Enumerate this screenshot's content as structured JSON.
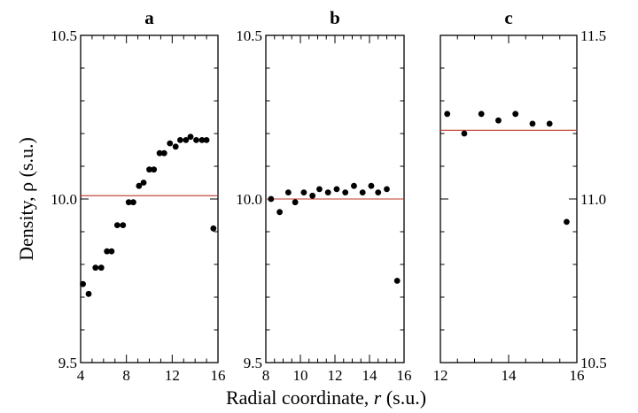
{
  "figure": {
    "xlabel_prefix": "Radial coordinate, ",
    "xlabel_var": "r",
    "xlabel_suffix": " (s.u.)",
    "ylabel": "Density, ρ (s.u.)"
  },
  "chart_data": [
    {
      "type": "scatter",
      "title": "a",
      "x": [
        4.2,
        4.7,
        5.3,
        5.8,
        6.3,
        6.7,
        7.2,
        7.7,
        8.2,
        8.6,
        9.1,
        9.5,
        10.0,
        10.4,
        10.9,
        11.3,
        11.8,
        12.3,
        12.7,
        13.2,
        13.6,
        14.1,
        14.6,
        15.0,
        15.6
      ],
      "y": [
        9.74,
        9.71,
        9.79,
        9.79,
        9.84,
        9.84,
        9.92,
        9.92,
        9.99,
        9.99,
        10.04,
        10.05,
        10.09,
        10.09,
        10.14,
        10.14,
        10.17,
        10.16,
        10.18,
        10.18,
        10.19,
        10.18,
        10.18,
        10.18,
        9.91
      ],
      "reference_line": 10.01,
      "xlim": [
        4,
        16
      ],
      "ylim": [
        9.5,
        10.5
      ],
      "xticks": [
        "4",
        "8",
        "12",
        "16"
      ],
      "yticks_left": [
        "9.5",
        "10.0",
        "10.5"
      ],
      "marker_color": "#000000",
      "line_color": "#c0392b"
    },
    {
      "type": "scatter",
      "title": "b",
      "x": [
        8.3,
        8.8,
        9.3,
        9.7,
        10.2,
        10.7,
        11.1,
        11.6,
        12.1,
        12.6,
        13.1,
        13.6,
        14.1,
        14.5,
        15.0,
        15.6
      ],
      "y": [
        10.0,
        9.96,
        10.02,
        9.99,
        10.02,
        10.01,
        10.03,
        10.02,
        10.03,
        10.02,
        10.04,
        10.02,
        10.04,
        10.02,
        10.03,
        9.75
      ],
      "reference_line": 10.0,
      "xlim": [
        8,
        16
      ],
      "ylim": [
        9.5,
        10.5
      ],
      "xticks": [
        "8",
        "10",
        "12",
        "14",
        "16"
      ],
      "yticks_left": [
        "9.5",
        "10.0",
        "10.5"
      ],
      "marker_color": "#000000",
      "line_color": "#c0392b"
    },
    {
      "type": "scatter",
      "title": "c",
      "x": [
        12.2,
        12.7,
        13.2,
        13.7,
        14.2,
        14.7,
        15.2,
        15.7
      ],
      "y": [
        11.26,
        11.2,
        11.26,
        11.24,
        11.26,
        11.23,
        11.23,
        10.93
      ],
      "reference_line": 11.21,
      "xlim": [
        12,
        16
      ],
      "ylim": [
        10.5,
        11.5
      ],
      "xticks": [
        "12",
        "14",
        "16"
      ],
      "yticks_right": [
        "10.5",
        "11.0",
        "11.5"
      ],
      "marker_color": "#000000",
      "line_color": "#c0392b"
    }
  ]
}
